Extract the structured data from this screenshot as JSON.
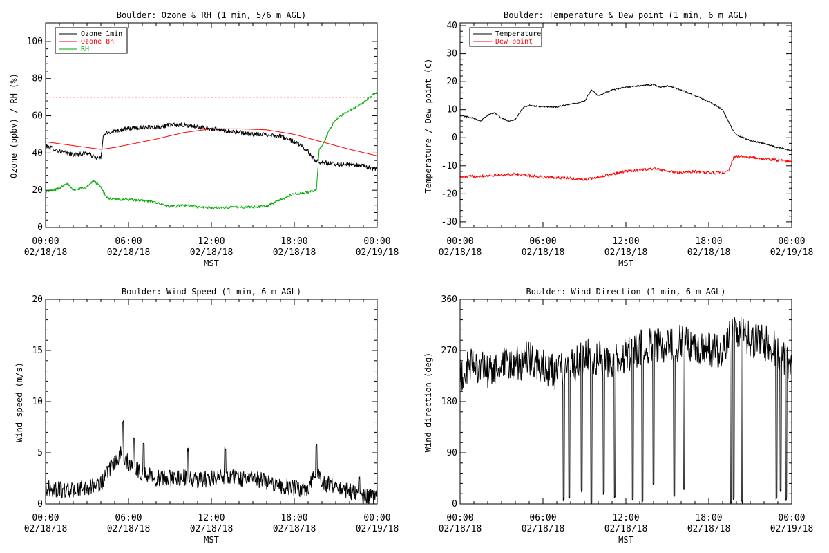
{
  "chart_data": [
    {
      "type": "line",
      "title": "Boulder: Ozone & RH (1 min, 5/6 m AGL)",
      "xlabel": "MST",
      "ylabel": "Ozone (ppbv) / RH (%)",
      "xlim_hours": [
        0,
        24
      ],
      "ylim": [
        0,
        110
      ],
      "yticks": [
        0,
        20,
        40,
        60,
        80,
        100
      ],
      "xticks": [
        {
          "h": 0,
          "time": "00:00",
          "date": "02/18/18"
        },
        {
          "h": 6,
          "time": "06:00",
          "date": "02/18/18"
        },
        {
          "h": 12,
          "time": "12:00",
          "date": "02/18/18"
        },
        {
          "h": 18,
          "time": "18:00",
          "date": "02/18/18"
        },
        {
          "h": 24,
          "time": "00:00",
          "date": "02/19/18"
        }
      ],
      "legend": {
        "position": "top-left",
        "entries": [
          {
            "label": "Ozone 1min",
            "color": "#000000"
          },
          {
            "label": "Ozone 8h",
            "color": "#ff0000"
          },
          {
            "label": "RH",
            "color": "#00aa00"
          }
        ]
      },
      "reference_lines": [
        {
          "y": 70,
          "color": "#ff0000",
          "style": "dotted"
        }
      ],
      "series": [
        {
          "name": "Ozone 1min",
          "color": "#000000",
          "noise": 1.2,
          "points": [
            [
              0,
              44
            ],
            [
              1,
              41
            ],
            [
              2,
              39
            ],
            [
              3,
              40
            ],
            [
              3.5,
              38
            ],
            [
              4,
              37
            ],
            [
              4.2,
              50
            ],
            [
              5,
              52
            ],
            [
              6,
              53
            ],
            [
              7,
              54
            ],
            [
              8,
              54
            ],
            [
              9,
              55
            ],
            [
              10,
              55
            ],
            [
              11,
              54
            ],
            [
              12,
              53
            ],
            [
              13,
              52
            ],
            [
              14,
              51
            ],
            [
              15,
              50
            ],
            [
              16,
              50
            ],
            [
              17,
              49
            ],
            [
              18,
              46
            ],
            [
              18.5,
              44
            ],
            [
              19.1,
              40
            ],
            [
              19.5,
              36
            ],
            [
              20,
              35
            ],
            [
              21,
              34
            ],
            [
              22,
              34
            ],
            [
              23,
              33
            ],
            [
              24,
              31
            ]
          ]
        },
        {
          "name": "Ozone 8h",
          "color": "#ff0000",
          "noise": 0,
          "points": [
            [
              0,
              46
            ],
            [
              2,
              44
            ],
            [
              4,
              42
            ],
            [
              5,
              43
            ],
            [
              6,
              44.5
            ],
            [
              8,
              47.5
            ],
            [
              10,
              51
            ],
            [
              12,
              53
            ],
            [
              14,
              53
            ],
            [
              16,
              52.5
            ],
            [
              18,
              50
            ],
            [
              20,
              46
            ],
            [
              22,
              42
            ],
            [
              24,
              38.5
            ]
          ]
        },
        {
          "name": "RH",
          "color": "#00aa00",
          "noise": 0.7,
          "points": [
            [
              0,
              19
            ],
            [
              1,
              21
            ],
            [
              1.5,
              24
            ],
            [
              2,
              20
            ],
            [
              3,
              22
            ],
            [
              3.5,
              25
            ],
            [
              4,
              22
            ],
            [
              4.4,
              16
            ],
            [
              5,
              15
            ],
            [
              6,
              15
            ],
            [
              7,
              14.5
            ],
            [
              8,
              13.5
            ],
            [
              9,
              11
            ],
            [
              10,
              12
            ],
            [
              11,
              11
            ],
            [
              12,
              10.5
            ],
            [
              14,
              11
            ],
            [
              15,
              11
            ],
            [
              16,
              11.5
            ],
            [
              17,
              15
            ],
            [
              18,
              18
            ],
            [
              19,
              19
            ],
            [
              19.6,
              20
            ],
            [
              19.8,
              42
            ],
            [
              20.2,
              46
            ],
            [
              20.5,
              52
            ],
            [
              21,
              58
            ],
            [
              22,
              63
            ],
            [
              23,
              67
            ],
            [
              23.5,
              70
            ],
            [
              24,
              73
            ]
          ]
        }
      ]
    },
    {
      "type": "line",
      "title": "Boulder: Temperature & Dew point (1 min, 6 m AGL)",
      "xlabel": "MST",
      "ylabel": "Temperature / Dew point (C)",
      "xlim_hours": [
        0,
        24
      ],
      "ylim": [
        -32,
        41
      ],
      "yticks": [
        -30,
        -20,
        -10,
        0,
        10,
        20,
        30,
        40
      ],
      "xticks": [
        {
          "h": 0,
          "time": "00:00",
          "date": "02/18/18"
        },
        {
          "h": 6,
          "time": "06:00",
          "date": "02/18/18"
        },
        {
          "h": 12,
          "time": "12:00",
          "date": "02/18/18"
        },
        {
          "h": 18,
          "time": "18:00",
          "date": "02/18/18"
        },
        {
          "h": 24,
          "time": "00:00",
          "date": "02/19/18"
        }
      ],
      "legend": {
        "position": "top-left",
        "entries": [
          {
            "label": "Temperature",
            "color": "#000000"
          },
          {
            "label": "Dew point",
            "color": "#ff0000"
          }
        ]
      },
      "series": [
        {
          "name": "Temperature",
          "color": "#000000",
          "noise": 0.25,
          "points": [
            [
              0,
              8
            ],
            [
              1,
              7
            ],
            [
              1.5,
              6
            ],
            [
              2,
              8
            ],
            [
              2.5,
              9
            ],
            [
              3,
              7
            ],
            [
              3.5,
              6
            ],
            [
              4,
              6.5
            ],
            [
              4.6,
              11
            ],
            [
              5,
              11.5
            ],
            [
              6,
              11
            ],
            [
              7,
              11
            ],
            [
              8,
              12
            ],
            [
              9,
              13
            ],
            [
              9.5,
              17
            ],
            [
              10,
              15
            ],
            [
              11,
              17
            ],
            [
              12,
              18
            ],
            [
              13,
              18.5
            ],
            [
              14,
              19
            ],
            [
              14.5,
              18
            ],
            [
              15,
              18.5
            ],
            [
              16,
              17
            ],
            [
              17,
              15
            ],
            [
              18,
              13
            ],
            [
              19,
              10
            ],
            [
              19.7,
              3
            ],
            [
              20,
              1
            ],
            [
              21,
              -1
            ],
            [
              22,
              -2
            ],
            [
              23,
              -3.5
            ],
            [
              24,
              -4.5
            ]
          ]
        },
        {
          "name": "Dew point",
          "color": "#ff0000",
          "noise": 0.5,
          "points": [
            [
              0,
              -14
            ],
            [
              2,
              -13.5
            ],
            [
              4,
              -13
            ],
            [
              6,
              -14
            ],
            [
              8,
              -14.5
            ],
            [
              9,
              -15
            ],
            [
              10,
              -14
            ],
            [
              11,
              -13
            ],
            [
              12,
              -12
            ],
            [
              13,
              -11.5
            ],
            [
              14,
              -11
            ],
            [
              15,
              -12
            ],
            [
              16,
              -12.5
            ],
            [
              17,
              -12
            ],
            [
              18,
              -12.5
            ],
            [
              19,
              -12.5
            ],
            [
              19.4,
              -12
            ],
            [
              19.8,
              -7
            ],
            [
              20,
              -6.5
            ],
            [
              21,
              -7
            ],
            [
              22,
              -7.5
            ],
            [
              23,
              -8
            ],
            [
              24,
              -8.5
            ]
          ]
        }
      ]
    },
    {
      "type": "line",
      "title": "Boulder: Wind Speed (1 min, 6 m AGL)",
      "xlabel": "MST",
      "ylabel": "Wind speed (m/s)",
      "xlim_hours": [
        0,
        24
      ],
      "ylim": [
        0,
        20
      ],
      "yticks": [
        0,
        5,
        10,
        15,
        20
      ],
      "xticks": [
        {
          "h": 0,
          "time": "00:00",
          "date": "02/18/18"
        },
        {
          "h": 6,
          "time": "06:00",
          "date": "02/18/18"
        },
        {
          "h": 12,
          "time": "12:00",
          "date": "02/18/18"
        },
        {
          "h": 18,
          "time": "18:00",
          "date": "02/18/18"
        },
        {
          "h": 24,
          "time": "00:00",
          "date": "02/19/18"
        }
      ],
      "series": [
        {
          "name": "Wind speed",
          "color": "#000000",
          "noise": 0.8,
          "floor": 0,
          "points": [
            [
              0,
              1.5
            ],
            [
              2,
              1.3
            ],
            [
              3,
              1.6
            ],
            [
              4,
              2
            ],
            [
              4.5,
              3
            ],
            [
              5,
              4
            ],
            [
              5.5,
              5
            ],
            [
              6,
              4
            ],
            [
              7,
              3
            ],
            [
              8,
              2.5
            ],
            [
              9,
              2.5
            ],
            [
              10,
              2.6
            ],
            [
              11,
              2.3
            ],
            [
              12,
              2.5
            ],
            [
              13,
              2.8
            ],
            [
              14,
              2.5
            ],
            [
              15,
              2.5
            ],
            [
              16,
              2.2
            ],
            [
              17,
              1.8
            ],
            [
              18,
              1.5
            ],
            [
              19,
              1.5
            ],
            [
              19.6,
              3.5
            ],
            [
              20,
              2
            ],
            [
              21,
              1.8
            ],
            [
              22,
              1.2
            ],
            [
              23,
              0.8
            ],
            [
              24,
              0.6
            ]
          ],
          "peaks": [
            [
              5.6,
              8.2
            ],
            [
              6.4,
              6.5
            ],
            [
              7.1,
              6.1
            ],
            [
              10.3,
              5.5
            ],
            [
              13.0,
              5.6
            ],
            [
              19.6,
              5.8
            ],
            [
              22.7,
              2.8
            ]
          ]
        }
      ]
    },
    {
      "type": "line",
      "title": "Boulder: Wind Direction (1 min, 6 m AGL)",
      "xlabel": "MST",
      "ylabel": "Wind direction (deg)",
      "xlim_hours": [
        0,
        24
      ],
      "ylim": [
        0,
        360
      ],
      "yticks": [
        0,
        90,
        180,
        270,
        360
      ],
      "xticks": [
        {
          "h": 0,
          "time": "00:00",
          "date": "02/18/18"
        },
        {
          "h": 6,
          "time": "06:00",
          "date": "02/18/18"
        },
        {
          "h": 12,
          "time": "12:00",
          "date": "02/18/18"
        },
        {
          "h": 18,
          "time": "18:00",
          "date": "02/18/18"
        },
        {
          "h": 24,
          "time": "00:00",
          "date": "02/19/18"
        }
      ],
      "series": [
        {
          "name": "Wind direction",
          "color": "#000000",
          "noise": 32,
          "floor": 0,
          "ceil": 360,
          "points": [
            [
              0,
              220
            ],
            [
              1,
              250
            ],
            [
              2,
              230
            ],
            [
              3,
              240
            ],
            [
              4,
              245
            ],
            [
              5,
              255
            ],
            [
              6,
              240
            ],
            [
              7,
              230
            ],
            [
              8,
              240
            ],
            [
              9,
              260
            ],
            [
              10,
              255
            ],
            [
              11,
              250
            ],
            [
              12,
              260
            ],
            [
              13,
              275
            ],
            [
              14,
              280
            ],
            [
              15,
              275
            ],
            [
              16,
              285
            ],
            [
              17,
              280
            ],
            [
              18,
              270
            ],
            [
              19,
              270
            ],
            [
              19.5,
              290
            ],
            [
              20,
              300
            ],
            [
              21,
              290
            ],
            [
              22,
              285
            ],
            [
              23,
              270
            ],
            [
              24,
              240
            ]
          ],
          "dips": [
            [
              7.5,
              5
            ],
            [
              7.9,
              10
            ],
            [
              8.8,
              20
            ],
            [
              9.5,
              0
            ],
            [
              10.4,
              15
            ],
            [
              11.2,
              10
            ],
            [
              12.5,
              5
            ],
            [
              13.2,
              0
            ],
            [
              14.0,
              30
            ],
            [
              15.5,
              10
            ],
            [
              16.2,
              20
            ],
            [
              19.6,
              0
            ],
            [
              19.8,
              5
            ],
            [
              20.4,
              0
            ],
            [
              22.9,
              5
            ],
            [
              23.2,
              20
            ],
            [
              23.6,
              5
            ]
          ]
        }
      ]
    }
  ]
}
